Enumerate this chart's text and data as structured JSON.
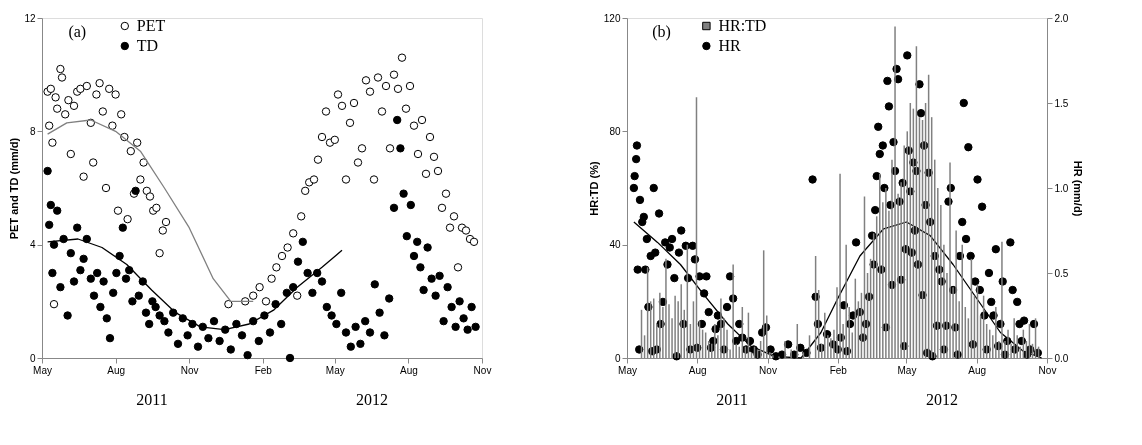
{
  "chart_data": [
    {
      "type": "scatter",
      "title": "(a)",
      "ylabel": "PET and TD (mm/d)",
      "xlim": [
        "2011-05-01",
        "2012-11-01"
      ],
      "xticks": [
        {
          "value": "2011-05-01",
          "label": "May"
        },
        {
          "value": "2011-08-01",
          "label": "Aug"
        },
        {
          "value": "2011-11-01",
          "label": "Nov"
        },
        {
          "value": "2012-02-01",
          "label": "Feb"
        },
        {
          "value": "2012-05-01",
          "label": "May"
        },
        {
          "value": "2012-08-01",
          "label": "Aug"
        },
        {
          "value": "2012-11-01",
          "label": "Nov"
        }
      ],
      "ylim": [
        0,
        12
      ],
      "yticks": [
        0,
        4,
        8,
        12
      ],
      "grid": false,
      "legend": "top left",
      "marker": "circle",
      "annotations": [
        "2011",
        "2012"
      ],
      "series": [
        {
          "name": "PET",
          "color": "#ffffff",
          "x": [
            "2011-05-08",
            "2011-05-10",
            "2011-05-12",
            "2011-05-14",
            "2011-05-16",
            "2011-05-18",
            "2011-05-20",
            "2011-05-24",
            "2011-05-26",
            "2011-05-30",
            "2011-06-03",
            "2011-06-06",
            "2011-06-10",
            "2011-06-14",
            "2011-06-18",
            "2011-06-22",
            "2011-06-26",
            "2011-07-01",
            "2011-07-04",
            "2011-07-08",
            "2011-07-12",
            "2011-07-16",
            "2011-07-20",
            "2011-07-24",
            "2011-07-28",
            "2011-08-01",
            "2011-08-04",
            "2011-08-08",
            "2011-08-12",
            "2011-08-16",
            "2011-08-20",
            "2011-08-24",
            "2011-08-28",
            "2011-09-01",
            "2011-09-05",
            "2011-09-09",
            "2011-09-13",
            "2011-09-17",
            "2011-09-21",
            "2011-09-25",
            "2011-09-29",
            "2011-10-03",
            "2011-12-20",
            "2012-01-10",
            "2012-01-20",
            "2012-01-28",
            "2012-02-05",
            "2012-02-12",
            "2012-02-18",
            "2012-02-25",
            "2012-03-03",
            "2012-03-10",
            "2012-03-15",
            "2012-03-20",
            "2012-03-25",
            "2012-03-30",
            "2012-04-05",
            "2012-04-10",
            "2012-04-15",
            "2012-04-20",
            "2012-04-25",
            "2012-05-01",
            "2012-05-05",
            "2012-05-10",
            "2012-05-15",
            "2012-05-20",
            "2012-05-25",
            "2012-05-30",
            "2012-06-04",
            "2012-06-09",
            "2012-06-14",
            "2012-06-19",
            "2012-06-24",
            "2012-06-29",
            "2012-07-04",
            "2012-07-09",
            "2012-07-14",
            "2012-07-19",
            "2012-07-24",
            "2012-07-29",
            "2012-08-03",
            "2012-08-08",
            "2012-08-13",
            "2012-08-18",
            "2012-08-23",
            "2012-08-28",
            "2012-09-02",
            "2012-09-07",
            "2012-09-12",
            "2012-09-17",
            "2012-09-22",
            "2012-09-27",
            "2012-10-02",
            "2012-10-07",
            "2012-10-12",
            "2012-10-17",
            "2012-10-22"
          ],
          "values": [
            9.4,
            8.2,
            9.5,
            7.6,
            1.9,
            9.2,
            8.8,
            10.2,
            9.9,
            8.6,
            9.1,
            7.2,
            8.9,
            9.4,
            9.5,
            6.4,
            9.6,
            8.3,
            6.9,
            9.3,
            9.7,
            8.7,
            6.0,
            9.5,
            8.2,
            9.3,
            5.2,
            8.6,
            7.8,
            4.9,
            7.3,
            5.8,
            7.6,
            6.3,
            6.9,
            5.9,
            5.7,
            5.2,
            5.3,
            3.7,
            4.5,
            4.8,
            1.9,
            2.0,
            2.2,
            2.5,
            2.0,
            2.8,
            3.2,
            3.6,
            3.9,
            4.4,
            2.2,
            5.0,
            5.9,
            6.2,
            6.3,
            7.0,
            7.8,
            8.7,
            7.6,
            7.7,
            9.3,
            8.9,
            6.3,
            8.3,
            9.0,
            6.9,
            7.4,
            9.8,
            9.4,
            6.3,
            9.9,
            8.7,
            9.6,
            7.4,
            10.0,
            9.5,
            10.6,
            8.8,
            9.6,
            8.2,
            7.2,
            8.4,
            6.5,
            7.8,
            7.1,
            6.6,
            5.3,
            5.8,
            4.6,
            5.0,
            3.2,
            4.6,
            4.5,
            4.2,
            4.1
          ]
        },
        {
          "name": "TD",
          "color": "#000000",
          "x": [
            "2011-05-08",
            "2011-05-10",
            "2011-05-12",
            "2011-05-14",
            "2011-05-16",
            "2011-05-20",
            "2011-05-24",
            "2011-05-28",
            "2011-06-02",
            "2011-06-06",
            "2011-06-10",
            "2011-06-14",
            "2011-06-18",
            "2011-06-22",
            "2011-06-26",
            "2011-07-01",
            "2011-07-05",
            "2011-07-09",
            "2011-07-13",
            "2011-07-17",
            "2011-07-21",
            "2011-07-25",
            "2011-07-29",
            "2011-08-02",
            "2011-08-06",
            "2011-08-10",
            "2011-08-14",
            "2011-08-18",
            "2011-08-22",
            "2011-08-26",
            "2011-08-30",
            "2011-09-04",
            "2011-09-08",
            "2011-09-12",
            "2011-09-16",
            "2011-09-20",
            "2011-09-25",
            "2011-10-01",
            "2011-10-06",
            "2011-10-12",
            "2011-10-18",
            "2011-10-24",
            "2011-10-30",
            "2011-11-05",
            "2011-11-12",
            "2011-11-18",
            "2011-11-25",
            "2011-12-02",
            "2011-12-09",
            "2011-12-16",
            "2011-12-23",
            "2011-12-30",
            "2012-01-06",
            "2012-01-13",
            "2012-01-20",
            "2012-01-27",
            "2012-02-03",
            "2012-02-10",
            "2012-02-17",
            "2012-02-24",
            "2012-03-02",
            "2012-03-06",
            "2012-03-10",
            "2012-03-16",
            "2012-03-22",
            "2012-03-28",
            "2012-04-03",
            "2012-04-09",
            "2012-04-15",
            "2012-04-21",
            "2012-04-27",
            "2012-05-03",
            "2012-05-09",
            "2012-05-15",
            "2012-05-21",
            "2012-05-27",
            "2012-06-02",
            "2012-06-08",
            "2012-06-14",
            "2012-06-20",
            "2012-06-26",
            "2012-07-02",
            "2012-07-08",
            "2012-07-14",
            "2012-07-18",
            "2012-07-22",
            "2012-07-26",
            "2012-07-30",
            "2012-08-04",
            "2012-08-08",
            "2012-08-12",
            "2012-08-16",
            "2012-08-20",
            "2012-08-25",
            "2012-08-30",
            "2012-09-04",
            "2012-09-09",
            "2012-09-14",
            "2012-09-19",
            "2012-09-24",
            "2012-09-29",
            "2012-10-04",
            "2012-10-09",
            "2012-10-14",
            "2012-10-19",
            "2012-10-24"
          ],
          "values": [
            6.6,
            4.7,
            5.4,
            3.0,
            4.0,
            5.2,
            2.5,
            4.2,
            1.5,
            3.7,
            2.7,
            4.6,
            3.1,
            3.5,
            4.2,
            2.8,
            2.2,
            3.0,
            1.8,
            2.7,
            1.4,
            0.7,
            2.3,
            3.0,
            3.6,
            4.6,
            2.8,
            3.1,
            2.0,
            5.9,
            2.2,
            2.7,
            1.6,
            1.2,
            2.0,
            1.8,
            1.5,
            1.3,
            0.9,
            1.6,
            0.5,
            1.4,
            0.8,
            1.2,
            0.4,
            1.1,
            0.7,
            1.3,
            0.6,
            1.0,
            0.3,
            1.2,
            0.8,
            0.1,
            1.3,
            0.6,
            1.5,
            0.9,
            1.9,
            1.2,
            2.3,
            0.0,
            2.5,
            3.4,
            4.1,
            3.0,
            2.3,
            3.0,
            2.7,
            1.8,
            1.5,
            1.2,
            2.3,
            0.9,
            0.4,
            1.1,
            0.5,
            1.3,
            0.9,
            2.6,
            1.6,
            0.8,
            2.1,
            5.3,
            8.4,
            7.4,
            5.8,
            4.3,
            5.4,
            3.6,
            4.1,
            3.2,
            2.4,
            3.9,
            2.8,
            2.2,
            2.9,
            1.3,
            2.5,
            1.8,
            1.1,
            2.0,
            1.4,
            1.0,
            1.8,
            1.1
          ]
        },
        {
          "type": "line",
          "marker": "none",
          "line_style": "solid",
          "color": "#808080",
          "x": [
            "2011-05-08",
            "2011-06-01",
            "2011-07-01",
            "2011-08-01",
            "2011-09-01",
            "2011-10-01",
            "2011-11-01",
            "2011-12-01",
            "2011-12-23",
            "2012-01-20"
          ],
          "values": [
            7.9,
            8.3,
            8.4,
            8.0,
            7.3,
            6.0,
            4.6,
            2.8,
            2.0,
            2.0
          ]
        },
        {
          "type": "line",
          "marker": "none",
          "line_style": "solid",
          "color": "#000000",
          "x": [
            "2011-05-08",
            "2011-06-15",
            "2011-07-15",
            "2011-08-15",
            "2011-09-15",
            "2011-10-15",
            "2011-11-15",
            "2011-12-15",
            "2012-01-15",
            "2012-02-15",
            "2012-03-15",
            "2012-04-15",
            "2012-05-10"
          ],
          "values": [
            4.1,
            4.2,
            3.9,
            3.3,
            2.4,
            1.6,
            1.1,
            1.0,
            1.2,
            1.7,
            2.5,
            3.2,
            3.8
          ]
        }
      ]
    },
    {
      "type": "bar",
      "title": "(b)",
      "ylabel": "HR:TD (%)",
      "y2label": "HR (mm/d)",
      "xlim": [
        "2011-05-01",
        "2012-11-01"
      ],
      "xticks": [
        {
          "value": "2011-05-01",
          "label": "May"
        },
        {
          "value": "2011-08-01",
          "label": "Aug"
        },
        {
          "value": "2011-11-01",
          "label": "Nov"
        },
        {
          "value": "2012-02-01",
          "label": "Feb"
        },
        {
          "value": "2012-05-01",
          "label": "May"
        },
        {
          "value": "2012-08-01",
          "label": "Aug"
        },
        {
          "value": "2012-11-01",
          "label": "Nov"
        }
      ],
      "ylim": [
        0,
        120
      ],
      "yticks": [
        0,
        40,
        80,
        120
      ],
      "y2lim": [
        0,
        2
      ],
      "y2ticks": [
        {
          "value": 0,
          "label": "0.0"
        },
        {
          "value": 0.5,
          "label": "0.5"
        },
        {
          "value": 1,
          "label": "1.0"
        },
        {
          "value": 1.5,
          "label": "1.5"
        },
        {
          "value": 2,
          "label": "2.0"
        }
      ],
      "grid": false,
      "legend": "top left",
      "marker": "circle",
      "annotations": [
        "2011",
        "2012"
      ],
      "series": [
        {
          "name": "HR:TD",
          "color": "#808080",
          "x": [
            "2011-05-20",
            "2011-05-24",
            "2011-05-28",
            "2011-06-01",
            "2011-06-05",
            "2011-06-09",
            "2011-06-13",
            "2011-06-17",
            "2011-06-21",
            "2011-06-25",
            "2011-06-29",
            "2011-07-03",
            "2011-07-07",
            "2011-07-11",
            "2011-07-15",
            "2011-07-19",
            "2011-07-23",
            "2011-07-27",
            "2011-07-31",
            "2011-08-04",
            "2011-08-08",
            "2011-08-12",
            "2011-08-16",
            "2011-08-20",
            "2011-08-24",
            "2011-08-28",
            "2011-09-01",
            "2011-09-05",
            "2011-09-09",
            "2011-09-13",
            "2011-09-17",
            "2011-09-21",
            "2011-09-25",
            "2011-09-29",
            "2011-10-03",
            "2011-10-07",
            "2011-10-11",
            "2011-10-15",
            "2011-10-19",
            "2011-10-23",
            "2011-10-27",
            "2011-10-31",
            "2011-11-04",
            "2011-11-08",
            "2011-11-16",
            "2011-11-24",
            "2011-12-02",
            "2011-12-10",
            "2011-12-18",
            "2011-12-26",
            "2012-01-03",
            "2012-01-07",
            "2012-01-11",
            "2012-01-15",
            "2012-01-19",
            "2012-01-23",
            "2012-01-27",
            "2012-01-31",
            "2012-02-04",
            "2012-02-08",
            "2012-02-12",
            "2012-02-16",
            "2012-02-20",
            "2012-02-24",
            "2012-02-28",
            "2012-03-03",
            "2012-03-07",
            "2012-03-11",
            "2012-03-15",
            "2012-03-19",
            "2012-03-23",
            "2012-03-27",
            "2012-03-31",
            "2012-04-04",
            "2012-04-08",
            "2012-04-12",
            "2012-04-16",
            "2012-04-20",
            "2012-04-24",
            "2012-04-28",
            "2012-05-02",
            "2012-05-06",
            "2012-05-10",
            "2012-05-14",
            "2012-05-18",
            "2012-05-22",
            "2012-05-26",
            "2012-05-30",
            "2012-06-03",
            "2012-06-07",
            "2012-06-11",
            "2012-06-15",
            "2012-06-19",
            "2012-06-23",
            "2012-06-27",
            "2012-07-01",
            "2012-07-05",
            "2012-07-09",
            "2012-07-13",
            "2012-07-17",
            "2012-07-21",
            "2012-07-25",
            "2012-07-29",
            "2012-08-02",
            "2012-08-06",
            "2012-08-10",
            "2012-08-14",
            "2012-08-18",
            "2012-08-22",
            "2012-08-26",
            "2012-08-30",
            "2012-09-03",
            "2012-09-07",
            "2012-09-11",
            "2012-09-15",
            "2012-09-19",
            "2012-09-23",
            "2012-09-27",
            "2012-10-01",
            "2012-10-05",
            "2012-10-09",
            "2012-10-13",
            "2012-10-17",
            "2012-10-21"
          ],
          "values": [
            17,
            8,
            32,
            20,
            21,
            12,
            23,
            18,
            35,
            19,
            14,
            22,
            20,
            26,
            17,
            40,
            12,
            20,
            92,
            13,
            10,
            9,
            6,
            5,
            12,
            8,
            21,
            14,
            10,
            3,
            33,
            5,
            4,
            18,
            4,
            16,
            2,
            4,
            3,
            6,
            38,
            15,
            2,
            1,
            0.5,
            6,
            3,
            12,
            2,
            8,
            36,
            24,
            5,
            16,
            8,
            7,
            10,
            25,
            65,
            12,
            40,
            18,
            9,
            28,
            20,
            23,
            57,
            30,
            35,
            44,
            50,
            65,
            55,
            60,
            52,
            70,
            117,
            58,
            62,
            75,
            80,
            90,
            88,
            110,
            85,
            84,
            90,
            100,
            85,
            70,
            60,
            54,
            40,
            30,
            69,
            25,
            45,
            20,
            40,
            18,
            14,
            35,
            22,
            26,
            15,
            22,
            12,
            10,
            8,
            18,
            6,
            41,
            6,
            10,
            5,
            14,
            8,
            4,
            10,
            6,
            12,
            5,
            14,
            4
          ]
        },
        {
          "name": "HR",
          "type": "scatter",
          "axis": "y2",
          "color": "#000000",
          "x": [
            "2011-05-10",
            "2011-05-11",
            "2011-05-13",
            "2011-05-14",
            "2011-05-15",
            "2011-05-17",
            "2011-05-18",
            "2011-05-21",
            "2011-05-23",
            "2011-05-25",
            "2011-05-27",
            "2011-05-29",
            "2011-06-01",
            "2011-06-03",
            "2011-06-05",
            "2011-06-07",
            "2011-06-09",
            "2011-06-12",
            "2011-06-14",
            "2011-06-17",
            "2011-06-20",
            "2011-06-23",
            "2011-06-26",
            "2011-06-29",
            "2011-07-02",
            "2011-07-05",
            "2011-07-08",
            "2011-07-11",
            "2011-07-14",
            "2011-07-17",
            "2011-07-20",
            "2011-07-23",
            "2011-07-26",
            "2011-07-29",
            "2011-08-01",
            "2011-08-04",
            "2011-08-07",
            "2011-08-10",
            "2011-08-13",
            "2011-08-16",
            "2011-08-19",
            "2011-08-22",
            "2011-08-25",
            "2011-08-28",
            "2011-09-01",
            "2011-09-05",
            "2011-09-09",
            "2011-09-13",
            "2011-09-17",
            "2011-09-21",
            "2011-09-25",
            "2011-09-29",
            "2011-10-04",
            "2011-10-09",
            "2011-10-14",
            "2011-10-19",
            "2011-10-25",
            "2011-10-30",
            "2011-11-05",
            "2011-11-12",
            "2011-11-20",
            "2011-11-28",
            "2011-12-06",
            "2011-12-14",
            "2011-12-22",
            "2011-12-30",
            "2012-01-03",
            "2012-01-06",
            "2012-01-10",
            "2012-01-18",
            "2012-01-26",
            "2012-02-01",
            "2012-02-05",
            "2012-02-09",
            "2012-02-13",
            "2012-02-17",
            "2012-02-21",
            "2012-02-25",
            "2012-03-01",
            "2012-03-05",
            "2012-03-09",
            "2012-03-13",
            "2012-03-17",
            "2012-03-19",
            "2012-03-21",
            "2012-03-23",
            "2012-03-25",
            "2012-03-27",
            "2012-03-29",
            "2012-03-31",
            "2012-04-02",
            "2012-04-04",
            "2012-04-06",
            "2012-04-08",
            "2012-04-10",
            "2012-04-12",
            "2012-04-14",
            "2012-04-16",
            "2012-04-18",
            "2012-04-20",
            "2012-04-22",
            "2012-04-24",
            "2012-04-26",
            "2012-04-28",
            "2012-04-30",
            "2012-05-02",
            "2012-05-04",
            "2012-05-06",
            "2012-05-08",
            "2012-05-10",
            "2012-05-12",
            "2012-05-14",
            "2012-05-16",
            "2012-05-18",
            "2012-05-20",
            "2012-05-22",
            "2012-05-24",
            "2012-05-26",
            "2012-05-28",
            "2012-05-30",
            "2012-06-01",
            "2012-06-04",
            "2012-06-07",
            "2012-06-10",
            "2012-06-13",
            "2012-06-16",
            "2012-06-19",
            "2012-06-22",
            "2012-06-25",
            "2012-06-28",
            "2012-07-01",
            "2012-07-04",
            "2012-07-07",
            "2012-07-10",
            "2012-07-13",
            "2012-07-15",
            "2012-07-18",
            "2012-07-21",
            "2012-07-24",
            "2012-07-27",
            "2012-07-30",
            "2012-08-02",
            "2012-08-05",
            "2012-08-08",
            "2012-08-11",
            "2012-08-14",
            "2012-08-17",
            "2012-08-20",
            "2012-08-23",
            "2012-08-26",
            "2012-08-29",
            "2012-09-01",
            "2012-09-04",
            "2012-09-07",
            "2012-09-10",
            "2012-09-14",
            "2012-09-17",
            "2012-09-20",
            "2012-09-23",
            "2012-09-26",
            "2012-09-29",
            "2012-10-02",
            "2012-10-06",
            "2012-10-10",
            "2012-10-15",
            "2012-10-20"
          ],
          "values": [
            1.0,
            1.07,
            1.17,
            1.25,
            0.52,
            0.05,
            0.93,
            0.8,
            0.83,
            0.52,
            0.7,
            0.3,
            0.6,
            0.04,
            1.0,
            0.62,
            0.05,
            0.85,
            0.2,
            0.33,
            0.68,
            0.55,
            0.65,
            0.7,
            0.47,
            0.01,
            0.62,
            0.75,
            0.2,
            0.66,
            0.47,
            0.05,
            0.66,
            0.58,
            0.06,
            0.48,
            0.2,
            0.38,
            0.48,
            0.27,
            0.06,
            0.1,
            0.17,
            0.25,
            0.2,
            0.05,
            0.3,
            0.48,
            0.35,
            0.1,
            0.2,
            0.12,
            0.05,
            0.1,
            0.05,
            0.02,
            0.15,
            0.18,
            0.05,
            0.01,
            0.02,
            0.08,
            0.02,
            0.06,
            0.03,
            1.05,
            0.36,
            0.2,
            0.06,
            0.14,
            0.08,
            0.05,
            0.12,
            0.31,
            0.04,
            0.2,
            0.25,
            0.68,
            0.27,
            0.12,
            0.2,
            0.36,
            0.72,
            0.55,
            0.87,
            1.07,
            1.36,
            1.2,
            0.52,
            1.25,
            1.0,
            0.18,
            1.63,
            1.48,
            0.9,
            0.43,
            1.27,
            1.1,
            1.7,
            1.64,
            0.92,
            0.46,
            1.03,
            0.07,
            0.64,
            1.78,
            1.22,
            0.98,
            0.62,
            1.15,
            0.75,
            1.1,
            0.55,
            1.61,
            1.44,
            0.37,
            1.25,
            0.9,
            0.03,
            1.09,
            0.8,
            0.01,
            0.6,
            0.19,
            0.52,
            0.45,
            0.05,
            0.19,
            0.92,
            1.0,
            0.4,
            0.18,
            0.02,
            0.6,
            0.8,
            1.5,
            0.7,
            1.24,
            0.6,
            0.08,
            0.45,
            1.05,
            0.4,
            0.89,
            0.25,
            0.05,
            0.5,
            0.33,
            0.25,
            0.64,
            0.07,
            0.2,
            0.45,
            0.02,
            0.1,
            0.68,
            0.4,
            0.05,
            0.33,
            0.2,
            0.1,
            0.22,
            0.02,
            0.05,
            0.2,
            0.03
          ]
        },
        {
          "type": "line",
          "marker": "none",
          "line_style": "solid",
          "axis": "y2",
          "color": "#000000",
          "x": [
            "2011-05-10",
            "2011-06-10",
            "2011-07-10",
            "2011-08-10",
            "2011-09-10",
            "2011-10-10",
            "2011-11-10",
            "2011-12-15",
            "2012-01-10",
            "2012-02-01",
            "2012-03-01",
            "2012-04-01",
            "2012-05-01",
            "2012-06-01",
            "2012-07-01",
            "2012-08-01",
            "2012-09-01",
            "2012-10-01",
            "2012-10-25"
          ],
          "values": [
            0.8,
            0.68,
            0.55,
            0.37,
            0.2,
            0.07,
            0.01,
            0.0,
            0.15,
            0.35,
            0.6,
            0.76,
            0.8,
            0.72,
            0.55,
            0.35,
            0.15,
            0.04,
            0.0
          ]
        }
      ]
    }
  ]
}
